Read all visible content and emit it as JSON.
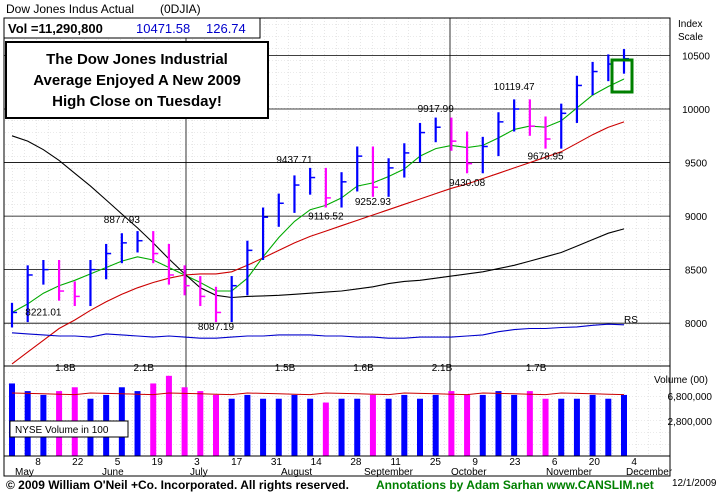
{
  "header": {
    "title": "Dow Jones Indus Actual",
    "symbol": "(0DJIA)",
    "vol_label": "Vol =11,290,800",
    "price": "10471.58",
    "change": "126.74"
  },
  "annotation": {
    "lines": [
      "The Dow Jones Industrial",
      "Average Enjoyed A New 2009",
      "High Close on Tuesday!"
    ]
  },
  "scale_label": [
    "Index",
    "Scale"
  ],
  "volume_title": "Volume (00)",
  "nyse_label": "NYSE  Volume in 100",
  "rs_label": "RS",
  "footer": {
    "copyright": "© 2009 William O'Neil +Co. Incorporated. All rights reserved.",
    "credit": "Annotations by Adam Sarhan www.CANSLIM.net",
    "date": "12/1/2009"
  },
  "colors": {
    "up": "#0000ff",
    "down": "#ff00ff",
    "ma50": "#00aa00",
    "ma200": "#cc0000",
    "ma_black": "#000000",
    "rs_line": "#0000cc",
    "highlight_box": "#008000",
    "credit_text": "#008000"
  },
  "chart_data": {
    "type": "line",
    "title": "Dow Jones Indus Actual",
    "ylabel": "Index Scale",
    "ylim": [
      7600,
      10850
    ],
    "price_ticks": [
      "10500",
      "10000",
      "9500",
      "9000",
      "8500",
      "8000"
    ],
    "volume_ticks": [
      "6,800,000",
      "2,800,000"
    ],
    "volume_markers": [
      "1.8B",
      "2.1B",
      "1.5B",
      "1.6B",
      "2.1B",
      "1.7B"
    ],
    "x_day_labels": [
      "8",
      "22",
      "5",
      "19",
      "3",
      "17",
      "31",
      "14",
      "28",
      "11",
      "25",
      "9",
      "23",
      "6",
      "20",
      "4"
    ],
    "x_month_labels": [
      "May",
      "June",
      "July",
      "August",
      "September",
      "October",
      "November",
      "December"
    ],
    "price_labels": [
      {
        "text": "8877.93",
        "value": 8877.93,
        "week": 7
      },
      {
        "text": "8221.01",
        "value": 8221.01,
        "week": 2
      },
      {
        "text": "8087.19",
        "value": 8087.19,
        "week": 13
      },
      {
        "text": "9437.71",
        "value": 9437.71,
        "week": 18
      },
      {
        "text": "9116.52",
        "value": 9116.52,
        "week": 20
      },
      {
        "text": "9252.93",
        "value": 9252.93,
        "week": 23
      },
      {
        "text": "9917.99",
        "value": 9917.99,
        "week": 27
      },
      {
        "text": "9430.08",
        "value": 9430.08,
        "week": 29
      },
      {
        "text": "10119.47",
        "value": 10119.47,
        "week": 32
      },
      {
        "text": "9678.95",
        "value": 9678.95,
        "week": 34
      }
    ],
    "series": [
      {
        "name": "Dow Jones Indus Actual",
        "x": [
          0,
          1,
          2,
          3,
          4,
          5,
          6,
          7,
          8,
          9,
          10,
          11,
          12,
          13,
          14,
          15,
          16,
          17,
          18,
          19,
          20,
          21,
          22,
          23,
          24,
          25,
          26,
          27,
          28,
          29,
          30,
          31,
          32,
          33,
          34,
          35,
          36,
          37,
          38,
          39
        ],
        "values": [
          8100,
          8450,
          8500,
          8300,
          8250,
          8500,
          8650,
          8750,
          8770,
          8650,
          8450,
          8350,
          8250,
          8100,
          8350,
          8680,
          8990,
          9120,
          9290,
          9360,
          9170,
          9320,
          9560,
          9270,
          9450,
          9590,
          9780,
          9830,
          9700,
          9490,
          9650,
          9880,
          10000,
          9840,
          9720,
          9960,
          10220,
          10350,
          10420,
          10470
        ]
      },
      {
        "name": "50-day",
        "values": [
          8100,
          8180,
          8280,
          8350,
          8400,
          8460,
          8520,
          8580,
          8620,
          8590,
          8520,
          8450,
          8380,
          8300,
          8300,
          8420,
          8620,
          8800,
          8950,
          9060,
          9100,
          9170,
          9280,
          9310,
          9370,
          9440,
          9560,
          9630,
          9660,
          9640,
          9660,
          9730,
          9810,
          9840,
          9830,
          9890,
          10010,
          10130,
          10210,
          10280
        ]
      },
      {
        "name": "200-day",
        "values": [
          7620,
          7730,
          7840,
          7950,
          8030,
          8120,
          8200,
          8270,
          8330,
          8380,
          8420,
          8450,
          8460,
          8460,
          8480,
          8540,
          8610,
          8680,
          8750,
          8810,
          8860,
          8910,
          8960,
          9010,
          9060,
          9110,
          9160,
          9210,
          9260,
          9300,
          9350,
          9400,
          9450,
          9500,
          9550,
          9600,
          9680,
          9760,
          9830,
          9880
        ]
      },
      {
        "name": "long-term",
        "values": [
          9750,
          9700,
          9620,
          9520,
          9400,
          9280,
          9150,
          9020,
          8890,
          8750,
          8600,
          8460,
          8330,
          8260,
          8240,
          8250,
          8255,
          8260,
          8270,
          8280,
          8290,
          8300,
          8320,
          8340,
          8370,
          8390,
          8400,
          8420,
          8440,
          8460,
          8480,
          8510,
          8540,
          8580,
          8620,
          8660,
          8720,
          8780,
          8840,
          8880
        ]
      },
      {
        "name": "RS",
        "values": [
          7910,
          7900,
          7890,
          7880,
          7880,
          7870,
          7900,
          7890,
          7880,
          7870,
          7880,
          7870,
          7860,
          7860,
          7870,
          7880,
          7880,
          7890,
          7890,
          7890,
          7880,
          7880,
          7870,
          7870,
          7860,
          7860,
          7870,
          7870,
          7870,
          7880,
          7890,
          7920,
          7940,
          7950,
          7950,
          7960,
          7965,
          7980,
          7990,
          7985
        ]
      },
      {
        "name": "Volume",
        "values": [
          1.9,
          1.7,
          1.6,
          1.7,
          1.8,
          1.5,
          1.6,
          1.8,
          1.7,
          1.9,
          2.1,
          1.8,
          1.7,
          1.6,
          1.5,
          1.6,
          1.5,
          1.5,
          1.6,
          1.5,
          1.4,
          1.5,
          1.5,
          1.6,
          1.5,
          1.6,
          1.5,
          1.6,
          1.7,
          1.6,
          1.6,
          1.7,
          1.6,
          1.7,
          1.5,
          1.5,
          1.5,
          1.6,
          1.5,
          1.6
        ]
      }
    ]
  }
}
